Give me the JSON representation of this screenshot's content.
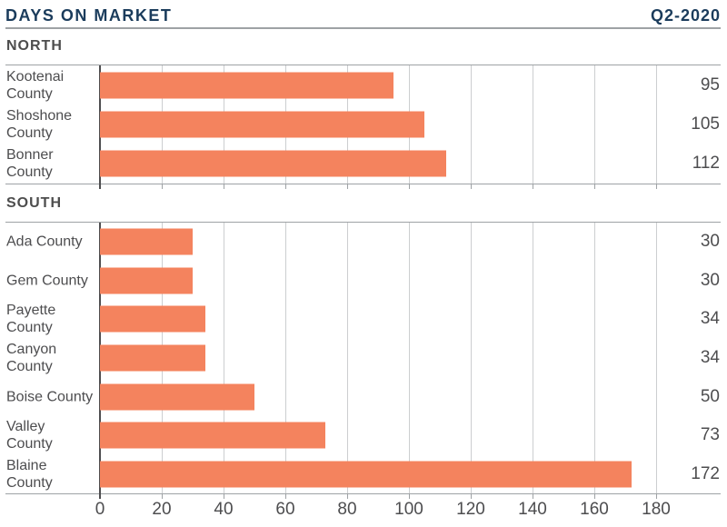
{
  "header": {
    "title": "DAYS ON MARKET",
    "period": "Q2-2020"
  },
  "axis": {
    "min": 0,
    "max": 180,
    "ticks": [
      0,
      20,
      40,
      60,
      80,
      100,
      120,
      140,
      160,
      180
    ]
  },
  "colors": {
    "bar": "#F4835E",
    "navy": "#1B3C5C",
    "text": "#4D4D4F",
    "grid": "#CCCED0",
    "border": "#9EA2A5"
  },
  "sections": [
    {
      "name": "NORTH",
      "rows": [
        {
          "label": "Kootenai\nCounty",
          "value": 95
        },
        {
          "label": "Shoshone\nCounty",
          "value": 105
        },
        {
          "label": "Bonner\nCounty",
          "value": 112
        }
      ]
    },
    {
      "name": "SOUTH",
      "rows": [
        {
          "label": "Ada County",
          "value": 30
        },
        {
          "label": "Gem County",
          "value": 30
        },
        {
          "label": "Payette\nCounty",
          "value": 34
        },
        {
          "label": "Canyon\nCounty",
          "value": 34
        },
        {
          "label": "Boise County",
          "value": 50
        },
        {
          "label": "Valley\nCounty",
          "value": 73
        },
        {
          "label": "Blaine\nCounty",
          "value": 172
        }
      ]
    }
  ],
  "chart_data": {
    "type": "bar",
    "orientation": "horizontal",
    "title": "DAYS ON MARKET",
    "subtitle": "Q2-2020",
    "xlabel": "",
    "ylabel": "",
    "xlim": [
      0,
      180
    ],
    "x_ticks": [
      0,
      20,
      40,
      60,
      80,
      100,
      120,
      140,
      160,
      180
    ],
    "grid": true,
    "value_labels": "right",
    "bar_color": "#F4835E",
    "series": [
      {
        "name": "NORTH",
        "categories": [
          "Kootenai County",
          "Shoshone County",
          "Bonner County"
        ],
        "values": [
          95,
          105,
          112
        ]
      },
      {
        "name": "SOUTH",
        "categories": [
          "Ada County",
          "Gem County",
          "Payette County",
          "Canyon County",
          "Boise County",
          "Valley County",
          "Blaine County"
        ],
        "values": [
          30,
          30,
          34,
          34,
          50,
          73,
          172
        ]
      }
    ]
  }
}
